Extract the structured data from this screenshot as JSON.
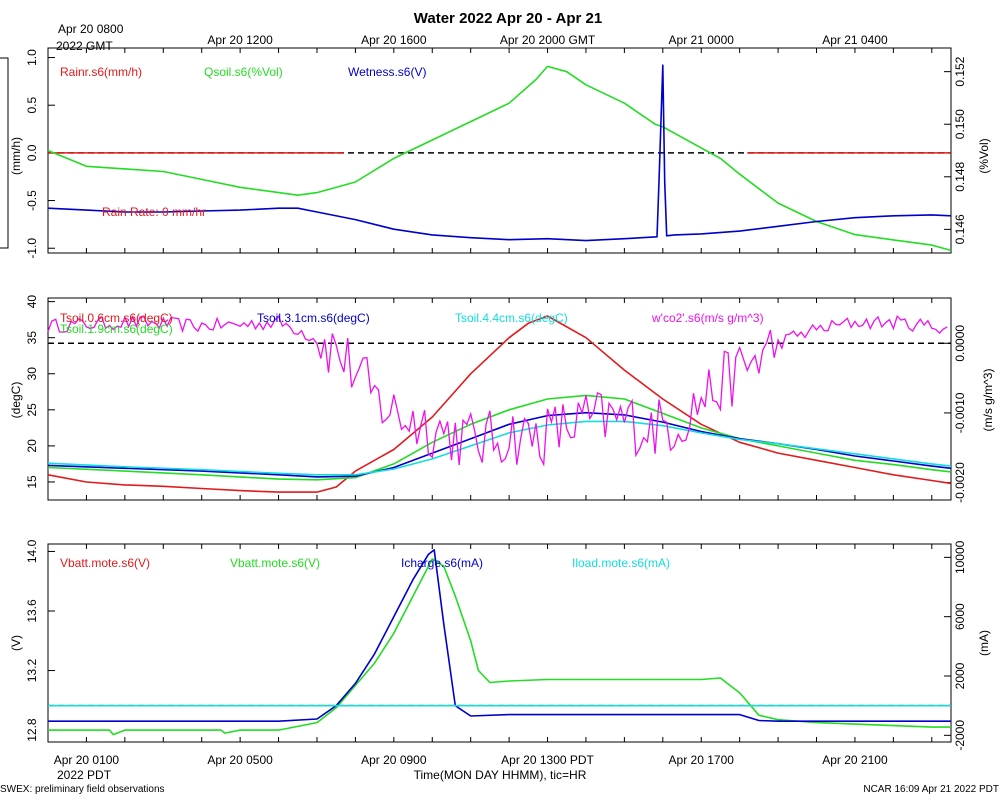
{
  "title": "Water 2022 Apr 20 - Apr 21",
  "top_axis": {
    "start_label_line1": "Apr 20 0800",
    "start_label_line2": "2022 GMT",
    "ticks": [
      "Apr 20 1200",
      "Apr 20 1600",
      "Apr 20 2000 GMT",
      "Apr 21 0000",
      "Apr 21 0400"
    ]
  },
  "bottom_axis": {
    "ticks": [
      "Apr 20 0100",
      "Apr 20 0500",
      "Apr 20 0900",
      "Apr 20 1300 PDT",
      "Apr 20 1700",
      "Apr 20 2100"
    ],
    "year_label": "2022 PDT",
    "xlabel": "Time(MON DAY HHMM), tic=HR"
  },
  "footer": {
    "left": "SWEX: preliminary field observations",
    "right": "NCAR 16:09 Apr 21 2022 PDT"
  },
  "colors": {
    "red": "#e31a1c",
    "green": "#22dd22",
    "blue": "#0000cc",
    "cyan": "#11dddd",
    "magenta": "#ee11ee",
    "black": "#000000"
  },
  "chart_data": [
    {
      "type": "line",
      "panel": "water",
      "x_range_hours_pdt": [
        0,
        23.5
      ],
      "left_axis": {
        "label": "(mm/h)",
        "ylim": [
          -1.05,
          1.1
        ],
        "ticks": [
          "1.0",
          "0.5",
          "0.0",
          "-0.5",
          "-1.0"
        ],
        "tick_values": [
          1.0,
          0.5,
          0.0,
          -0.5,
          -1.0
        ]
      },
      "right_axis": {
        "label": "(%Vol)",
        "ylim": [
          0.1451,
          0.1529
        ],
        "ticks": [
          "0.152",
          "0.150",
          "0.148",
          "0.146"
        ],
        "tick_values": [
          0.152,
          0.15,
          0.148,
          0.146
        ]
      },
      "legend": [
        "Rainr.s6(mm/h)",
        "Qsoil.s6(%Vol)",
        "Wetness.s6(V)"
      ],
      "annotation": "Rain Rate: 0 mm/hr",
      "reference_line": {
        "axis": "left",
        "value": 0.0
      },
      "series": [
        {
          "name": "Rainr.s6(mm/h)",
          "axis": "left",
          "color": "red",
          "x": [
            0,
            7.7,
            18.2,
            23.5
          ],
          "y": [
            0,
            0,
            0,
            0
          ],
          "segments": [
            [
              0,
              7.7
            ],
            [
              18.2,
              23.5
            ]
          ]
        },
        {
          "name": "Qsoil.s6(%Vol)",
          "axis": "right",
          "color": "green",
          "x": [
            0,
            1,
            2,
            3,
            4,
            5,
            6,
            6.5,
            7,
            8,
            9,
            10,
            11,
            12,
            12.7,
            13,
            13.5,
            14,
            15,
            15.8,
            16,
            17,
            17.5,
            18,
            19,
            20,
            21,
            22,
            23,
            23.5
          ],
          "y": [
            0.149,
            0.1484,
            0.1483,
            0.1482,
            0.1479,
            0.1476,
            0.1474,
            0.1473,
            0.1474,
            0.1478,
            0.1487,
            0.1494,
            0.1501,
            0.1508,
            0.1517,
            0.1522,
            0.152,
            0.1515,
            0.1508,
            0.15,
            0.1499,
            0.1491,
            0.1487,
            0.1481,
            0.147,
            0.1463,
            0.1458,
            0.1456,
            0.1454,
            0.1452
          ]
        },
        {
          "name": "Wetness.s6(V)",
          "axis": "left",
          "color": "blue",
          "x": [
            0,
            1,
            2,
            3,
            4,
            5,
            6,
            6.5,
            7,
            8,
            9,
            10,
            11,
            12,
            13,
            14,
            15,
            15.85,
            15.9,
            16.0,
            16.05,
            16.1,
            16.3,
            17,
            18,
            19,
            20,
            21,
            22,
            23,
            23.5
          ],
          "y": [
            -0.58,
            -0.6,
            -0.62,
            -0.62,
            -0.61,
            -0.6,
            -0.58,
            -0.58,
            -0.62,
            -0.7,
            -0.8,
            -0.86,
            -0.89,
            -0.91,
            -0.9,
            -0.92,
            -0.9,
            -0.88,
            -0.3,
            0.92,
            -0.3,
            -0.87,
            -0.86,
            -0.85,
            -0.82,
            -0.77,
            -0.72,
            -0.68,
            -0.66,
            -0.65,
            -0.66
          ]
        }
      ]
    },
    {
      "type": "line",
      "panel": "temperature",
      "x_range_hours_pdt": [
        0,
        23.5
      ],
      "left_axis": {
        "label": "(degC)",
        "ylim": [
          12.5,
          40.5
        ],
        "ticks": [
          "40",
          "35",
          "30",
          "25",
          "20",
          "15"
        ],
        "tick_values": [
          40,
          35,
          30,
          25,
          20,
          15
        ]
      },
      "right_axis": {
        "label": "(m/s g/m^3)",
        "ylim": [
          -0.00225,
          0.00065
        ],
        "ticks": [
          "0.0000",
          "-0.0010",
          "-0.0020"
        ],
        "tick_values": [
          0.0,
          -0.001,
          -0.002
        ]
      },
      "legend": [
        "Tsoil.0.6cm.s6(degC)",
        "Tsoil.1.9cm.s6(degC)",
        "Tsoil.3.1cm.s6(degC)",
        "Tsoil.4.4cm.s6(degC)",
        "w'co2'.s6(m/s g/m^3)"
      ],
      "reference_line": {
        "axis": "right",
        "value": 0.0
      },
      "series": [
        {
          "name": "Tsoil.0.6cm.s6(degC)",
          "axis": "left",
          "color": "red",
          "x": [
            0,
            1,
            2,
            3,
            4,
            5,
            6,
            7,
            7.5,
            8,
            9,
            10,
            11,
            12,
            12.5,
            13,
            14,
            15,
            16,
            17,
            18,
            19,
            20,
            21,
            22,
            23,
            23.5
          ],
          "y": [
            16.0,
            15.0,
            14.6,
            14.4,
            14.1,
            13.8,
            13.6,
            13.6,
            14.3,
            16.5,
            19.5,
            24.0,
            30.0,
            35.0,
            37.0,
            38.0,
            35.0,
            30.5,
            26.5,
            23.0,
            20.5,
            19.0,
            18.0,
            17.0,
            16.0,
            15.2,
            14.8
          ]
        },
        {
          "name": "Tsoil.1.9cm.s6(degC)",
          "axis": "left",
          "color": "green",
          "x": [
            0,
            2,
            4,
            6,
            7,
            8,
            9,
            10,
            11,
            12,
            13,
            14,
            15,
            16,
            17,
            18,
            19,
            20,
            21,
            22,
            23,
            23.5
          ],
          "y": [
            17.0,
            16.5,
            16.0,
            15.4,
            15.3,
            15.6,
            17.5,
            20.5,
            23.0,
            25.0,
            26.5,
            27.0,
            26.5,
            24.5,
            22.5,
            21.0,
            20.0,
            19.0,
            18.0,
            17.4,
            16.7,
            16.4
          ]
        },
        {
          "name": "Tsoil.3.1cm.s6(degC)",
          "axis": "left",
          "color": "blue",
          "x": [
            0,
            2,
            4,
            6,
            7,
            8,
            9,
            10,
            11,
            12,
            13,
            14,
            15,
            16,
            17,
            18,
            19,
            20,
            21,
            22,
            23,
            23.5
          ],
          "y": [
            17.3,
            16.9,
            16.5,
            16.0,
            15.7,
            15.8,
            17.0,
            19.0,
            21.0,
            23.0,
            24.2,
            24.6,
            24.3,
            23.3,
            22.0,
            21.0,
            20.3,
            19.5,
            18.6,
            17.9,
            17.2,
            16.9
          ]
        },
        {
          "name": "Tsoil.4.4cm.s6(degC)",
          "axis": "left",
          "color": "cyan",
          "x": [
            0,
            2,
            4,
            6,
            7,
            8,
            9,
            10,
            11,
            12,
            13,
            14,
            15,
            16,
            17,
            18,
            19,
            20,
            21,
            22,
            23,
            23.5
          ],
          "y": [
            17.6,
            17.1,
            16.7,
            16.2,
            16.0,
            16.0,
            16.8,
            18.2,
            20.0,
            21.8,
            22.9,
            23.4,
            23.4,
            22.8,
            21.8,
            20.9,
            20.3,
            19.6,
            18.9,
            18.2,
            17.5,
            17.2
          ]
        },
        {
          "name": "w'co2'.s6(m/s g/m^3)",
          "axis": "right",
          "color": "magenta",
          "style": "noisy",
          "x": [
            0,
            1,
            2,
            3,
            4,
            5,
            6,
            6.5,
            7,
            7.5,
            8,
            8.5,
            9,
            9.5,
            10,
            10.5,
            11,
            11.5,
            12,
            12.5,
            13,
            13.5,
            14,
            14.5,
            15,
            15.5,
            16,
            16.5,
            17,
            17.5,
            18,
            18.5,
            19,
            19.5,
            20,
            21,
            22,
            23,
            23.5
          ],
          "y": [
            0.00025,
            0.00027,
            0.0003,
            0.00028,
            0.00025,
            0.00027,
            0.0003,
            0.0002,
            5e-05,
            -0.0001,
            -0.0004,
            -0.0008,
            -0.001,
            -0.0011,
            -0.0012,
            -0.0013,
            -0.0014,
            -0.0014,
            -0.0013,
            -0.00135,
            -0.0013,
            -0.0012,
            -0.0011,
            -0.0011,
            -0.0011,
            -0.0012,
            -0.0012,
            -0.0011,
            -0.0008,
            -0.0006,
            -0.0004,
            -0.0002,
            0.0,
            0.00012,
            0.0002,
            0.0003,
            0.0003,
            0.00025,
            0.00022
          ]
        }
      ]
    },
    {
      "type": "line",
      "panel": "power",
      "x_range_hours_pdt": [
        0,
        23.5
      ],
      "left_axis": {
        "label": "(V)",
        "ylim": [
          12.72,
          14.05
        ],
        "ticks": [
          "14.0",
          "13.6",
          "13.2",
          "12.8"
        ],
        "tick_values": [
          14.0,
          13.6,
          13.2,
          12.8
        ]
      },
      "right_axis": {
        "label": "(mA)",
        "ylim": [
          -2450,
          10900
        ],
        "ticks": [
          "10000",
          "6000",
          "2000",
          "-2000"
        ],
        "tick_values": [
          10000,
          6000,
          2000,
          -2000
        ]
      },
      "legend": [
        "Vbatt.mote.s6(V)",
        "Vbatt.mote.s6(V)",
        "Icharge.s6(mA)",
        "Iload.mote.s6(mA)"
      ],
      "reference_line": {
        "axis": "right",
        "value": 0
      },
      "series": [
        {
          "name": "Vbatt.mote.s6(V)",
          "axis": "left",
          "color": "green",
          "x": [
            0,
            1,
            1.6,
            1.7,
            2,
            3,
            4,
            4.5,
            4.6,
            5,
            6,
            7,
            7.5,
            8,
            8.5,
            9,
            9.5,
            10,
            10.3,
            10.6,
            11,
            11.2,
            11.5,
            12,
            13,
            14,
            15,
            16,
            17,
            17.5,
            18,
            18.5,
            19,
            20,
            21,
            22,
            23,
            23.5
          ],
          "y": [
            12.8,
            12.8,
            12.8,
            12.77,
            12.8,
            12.8,
            12.8,
            12.8,
            12.78,
            12.8,
            12.8,
            12.85,
            12.95,
            13.1,
            13.25,
            13.45,
            13.7,
            13.95,
            13.9,
            13.7,
            13.4,
            13.2,
            13.12,
            13.13,
            13.14,
            13.14,
            13.14,
            13.14,
            13.14,
            13.15,
            13.05,
            12.9,
            12.87,
            12.85,
            12.84,
            12.83,
            12.82,
            12.82
          ]
        },
        {
          "name": "Icharge.s6(mA)",
          "axis": "right",
          "color": "blue",
          "x": [
            0,
            2,
            4,
            6,
            7,
            7.5,
            8,
            8.5,
            9,
            9.5,
            9.9,
            10.05,
            10.3,
            10.6,
            11,
            12,
            13,
            14,
            15,
            16,
            17,
            18,
            18.5,
            19,
            20,
            21,
            22,
            23,
            23.5
          ],
          "y": [
            -1050,
            -1050,
            -1050,
            -1050,
            -900,
            0,
            1500,
            3500,
            6000,
            8500,
            10200,
            10500,
            5500,
            0,
            -700,
            -600,
            -600,
            -600,
            -600,
            -600,
            -600,
            -600,
            -1000,
            -1050,
            -1050,
            -1050,
            -1050,
            -1050,
            -1050
          ]
        },
        {
          "name": "Iload.mote.s6(mA)",
          "axis": "right",
          "color": "cyan",
          "x": [
            0,
            23.5
          ],
          "y": [
            0,
            0
          ]
        }
      ]
    }
  ]
}
